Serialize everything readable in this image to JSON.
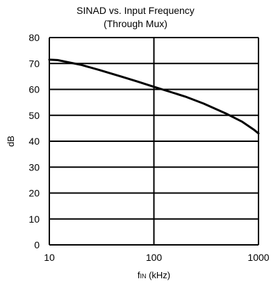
{
  "chart_data": {
    "type": "line",
    "title": "SINAD vs. Input Frequency",
    "subtitle": "(Through Mux)",
    "xlabel_main": "f",
    "xlabel_sub": "IN",
    "xlabel_unit": " (kHz)",
    "ylabel": "dB",
    "x_scale": "log",
    "xlim": [
      10,
      1000
    ],
    "ylim": [
      0,
      80
    ],
    "x_ticks": [
      10,
      100,
      1000
    ],
    "x_tick_labels": [
      "10",
      "100",
      "1000"
    ],
    "y_ticks": [
      0,
      10,
      20,
      30,
      40,
      50,
      60,
      70,
      80
    ],
    "y_tick_labels": [
      "0",
      "10",
      "20",
      "30",
      "40",
      "50",
      "60",
      "70",
      "80"
    ],
    "grid": true,
    "line_color": "#000000",
    "series": [
      {
        "x": [
          10,
          12,
          15,
          20,
          30,
          50,
          70,
          100,
          150,
          200,
          300,
          500,
          700,
          900,
          1000
        ],
        "values": [
          71.5,
          71.3,
          70.5,
          69.5,
          67.5,
          64.8,
          63.0,
          61.0,
          58.8,
          57.2,
          54.5,
          50.5,
          47.5,
          44.5,
          43.0
        ]
      }
    ]
  }
}
